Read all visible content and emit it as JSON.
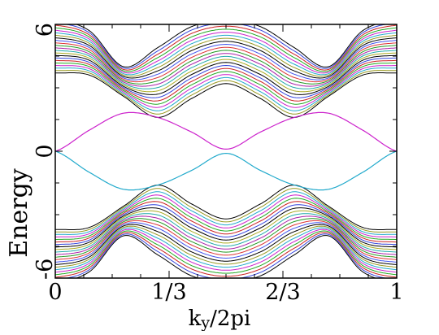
{
  "chart_data": {
    "type": "line",
    "xlabel": "k",
    "xlabel_subscript": "y",
    "xlabel_suffix": "/2pi",
    "ylabel": "Energy",
    "xlim": [
      0,
      1
    ],
    "ylim": [
      -6,
      6
    ],
    "x_ticks": [
      0,
      0.3333,
      0.6667,
      1
    ],
    "x_tick_labels": [
      "0",
      "1/3",
      "2/3",
      "1"
    ],
    "y_ticks": [
      -6,
      0,
      6
    ],
    "y_tick_labels": [
      "-6",
      "0",
      "6"
    ],
    "grid": false,
    "legend": "none",
    "num_bulk_bands_per_half": 22,
    "edge_states": [
      {
        "color": "#cc22cc",
        "x": [
          0,
          0.1,
          0.2,
          0.3,
          0.4,
          0.5,
          0.6,
          0.7,
          0.8,
          0.9,
          1.0
        ],
        "y": [
          0,
          1.0,
          1.8,
          1.6,
          0.9,
          0.1,
          0.9,
          1.6,
          1.8,
          1.0,
          0
        ]
      },
      {
        "color": "#22aacc",
        "x": [
          0,
          0.1,
          0.2,
          0.3,
          0.4,
          0.5,
          0.6,
          0.7,
          0.8,
          0.9,
          1.0
        ],
        "y": [
          0,
          -1.0,
          -1.8,
          -1.6,
          -0.9,
          -0.1,
          -0.9,
          -1.6,
          -1.8,
          -1.0,
          0
        ]
      }
    ],
    "outer_band_top": {
      "x": [
        0,
        0.1,
        0.2,
        0.3,
        0.4,
        0.5,
        0.6,
        0.7,
        0.8,
        0.9,
        1.0
      ],
      "y": [
        6.2,
        5.7,
        4.0,
        4.9,
        5.9,
        6.2,
        5.9,
        4.9,
        4.0,
        5.7,
        6.2
      ]
    },
    "inner_band_top": {
      "x": [
        0,
        0.1,
        0.2,
        0.3,
        0.4,
        0.5,
        0.6,
        0.7,
        0.8,
        0.9,
        1.0
      ],
      "y": [
        3.7,
        3.6,
        2.6,
        1.6,
        2.5,
        3.2,
        2.5,
        1.6,
        2.6,
        3.6,
        3.7
      ]
    },
    "series_colors": [
      "#000000",
      "#3344dd",
      "#cc2222",
      "#22aa22",
      "#cc22cc",
      "#22aacc",
      "#999922",
      "#000000",
      "#4455ee",
      "#dd3333",
      "#229922",
      "#aa22aa",
      "#22aaaa",
      "#aaaa22"
    ]
  }
}
